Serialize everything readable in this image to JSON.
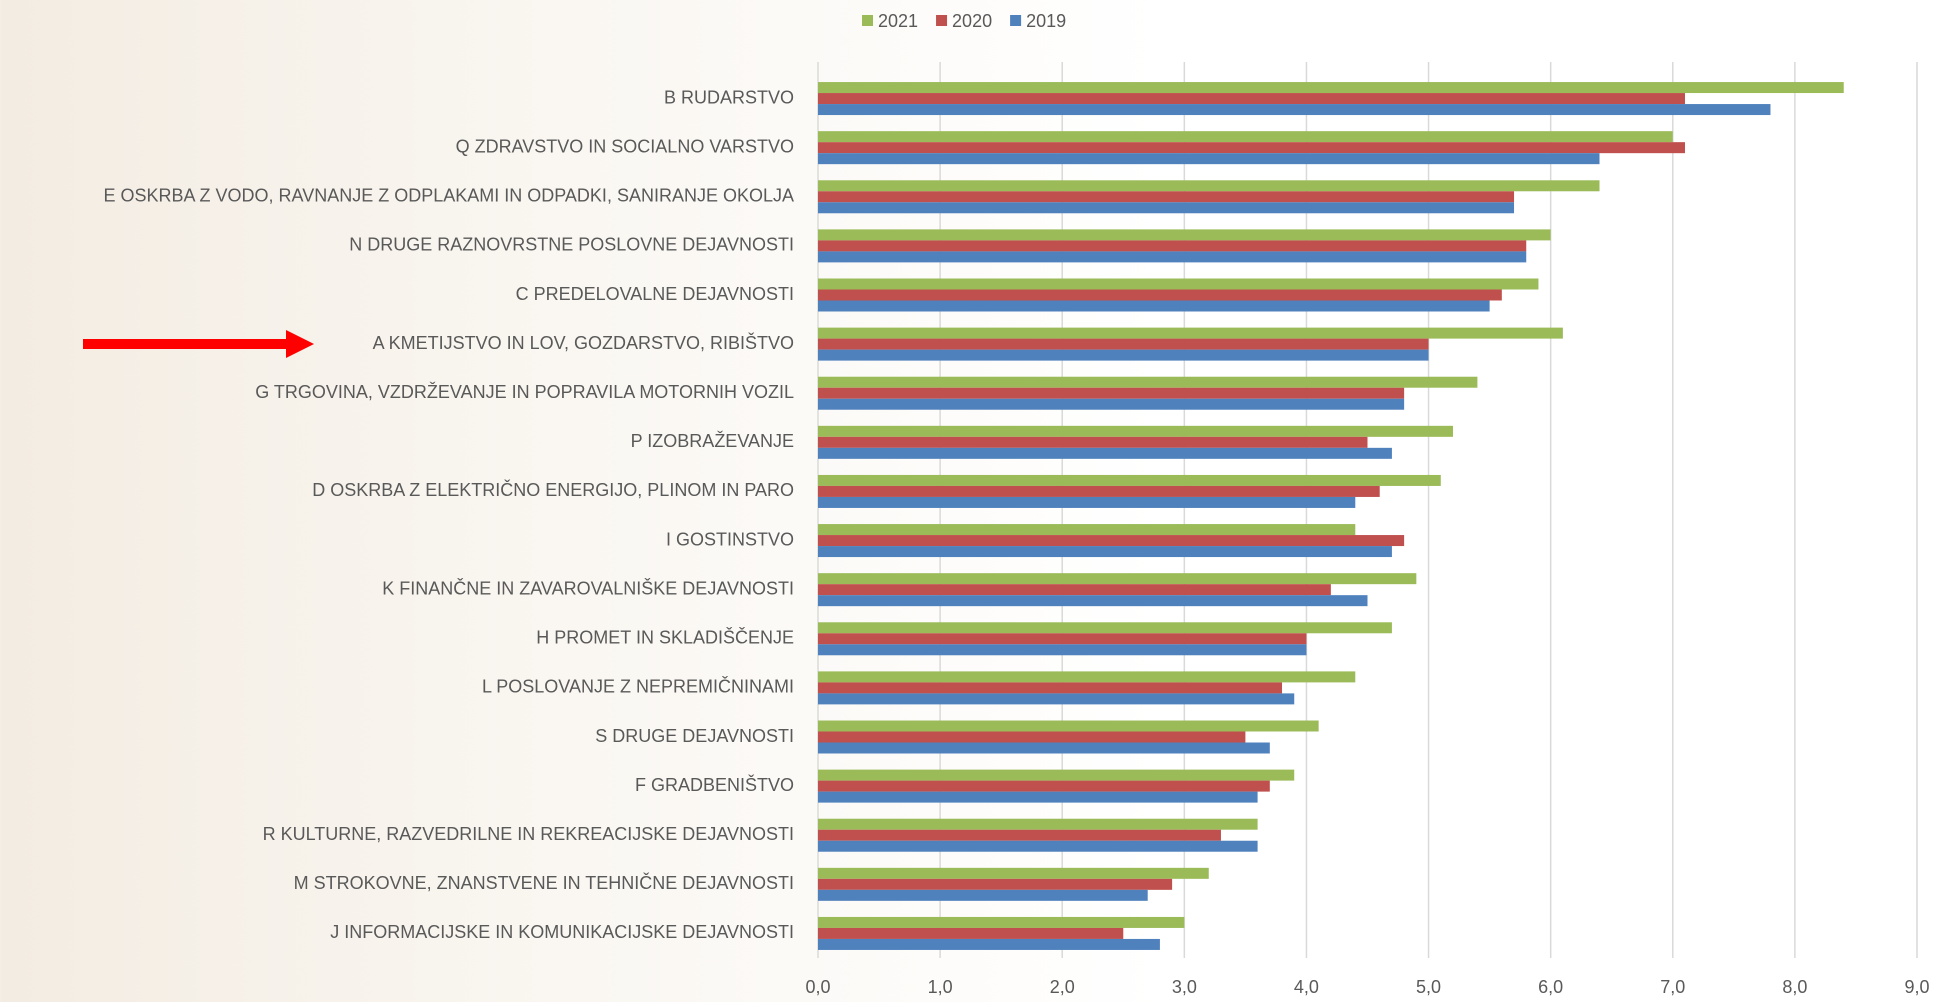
{
  "chart_data": {
    "type": "bar",
    "orientation": "horizontal",
    "categories": [
      "B RUDARSTVO",
      "Q ZDRAVSTVO IN SOCIALNO VARSTVO",
      "E OSKRBA Z VODO, RAVNANJE Z ODPLAKAMI IN ODPADKI, SANIRANJE OKOLJA",
      "N DRUGE RAZNOVRSTNE POSLOVNE DEJAVNOSTI",
      "C PREDELOVALNE DEJAVNOSTI",
      "A KMETIJSTVO IN LOV, GOZDARSTVO, RIBIŠTVO",
      "G TRGOVINA, VZDRŽEVANJE IN POPRAVILA MOTORNIH VOZIL",
      "P IZOBRAŽEVANJE",
      "D OSKRBA Z ELEKTRIČNO ENERGIJO, PLINOM IN PARO",
      "I GOSTINSTVO",
      "K FINANČNE IN ZAVAROVALNIŠKE DEJAVNOSTI",
      "H PROMET IN SKLADIŠČENJE",
      "L POSLOVANJE Z NEPREMIČNINAMI",
      "S DRUGE DEJAVNOSTI",
      "F GRADBENIŠTVO",
      "R KULTURNE, RAZVEDRILNE IN REKREACIJSKE DEJAVNOSTI",
      "M STROKOVNE, ZNANSTVENE IN TEHNIČNE DEJAVNOSTI",
      "J INFORMACIJSKE IN KOMUNIKACIJSKE DEJAVNOSTI"
    ],
    "series": [
      {
        "name": "2021",
        "color": "#9bbb59",
        "values": [
          8.4,
          7.0,
          6.4,
          6.0,
          5.9,
          6.1,
          5.4,
          5.2,
          5.1,
          4.4,
          4.9,
          4.7,
          4.4,
          4.1,
          3.9,
          3.6,
          3.2,
          3.0
        ]
      },
      {
        "name": "2020",
        "color": "#c0504d",
        "values": [
          7.1,
          7.1,
          5.7,
          5.8,
          5.6,
          5.0,
          4.8,
          4.5,
          4.6,
          4.8,
          4.2,
          4.0,
          3.8,
          3.5,
          3.7,
          3.3,
          2.9,
          2.5
        ]
      },
      {
        "name": "2019",
        "color": "#4f81bd",
        "values": [
          7.8,
          6.4,
          5.7,
          5.8,
          5.5,
          5.0,
          4.8,
          4.7,
          4.4,
          4.7,
          4.5,
          4.0,
          3.9,
          3.7,
          3.6,
          3.6,
          2.7,
          2.8
        ]
      }
    ],
    "xlim": [
      0,
      9
    ],
    "xticks": [
      {
        "value": 0,
        "label": "0,0"
      },
      {
        "value": 1,
        "label": "1,0"
      },
      {
        "value": 2,
        "label": "2,0"
      },
      {
        "value": 3,
        "label": "3,0"
      },
      {
        "value": 4,
        "label": "4,0"
      },
      {
        "value": 5,
        "label": "5,0"
      },
      {
        "value": 6,
        "label": "6,0"
      },
      {
        "value": 7,
        "label": "7,0"
      },
      {
        "value": 8,
        "label": "8,0"
      },
      {
        "value": 9,
        "label": "9,0"
      }
    ],
    "grid": true,
    "legend": "top"
  }
}
